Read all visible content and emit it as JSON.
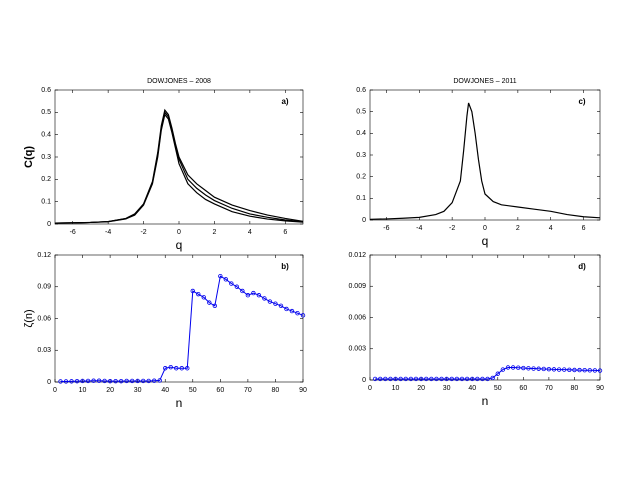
{
  "chart_data": [
    {
      "type": "line",
      "title": "DOWJONES – 2008",
      "annotation": "a)",
      "x_label": "q",
      "y_label": "C(q)",
      "x": [
        -7,
        -6,
        -5,
        -4,
        -3,
        -2.5,
        -2,
        -1.5,
        -1.2,
        -1,
        -0.8,
        -0.6,
        -0.4,
        -0.2,
        0,
        0.5,
        1,
        1.5,
        2,
        3,
        4,
        5,
        6,
        7
      ],
      "series": [
        {
          "color": "#000000",
          "values": [
            0.004,
            0.005,
            0.007,
            0.011,
            0.025,
            0.045,
            0.09,
            0.19,
            0.32,
            0.44,
            0.51,
            0.49,
            0.43,
            0.36,
            0.3,
            0.22,
            0.18,
            0.15,
            0.12,
            0.085,
            0.06,
            0.04,
            0.025,
            0.012
          ]
        },
        {
          "color": "#000000",
          "values": [
            0.004,
            0.005,
            0.007,
            0.011,
            0.024,
            0.043,
            0.088,
            0.185,
            0.31,
            0.43,
            0.5,
            0.48,
            0.42,
            0.35,
            0.29,
            0.2,
            0.16,
            0.13,
            0.105,
            0.07,
            0.045,
            0.03,
            0.018,
            0.01
          ]
        },
        {
          "color": "#000000",
          "values": [
            0.004,
            0.005,
            0.007,
            0.01,
            0.023,
            0.04,
            0.085,
            0.18,
            0.3,
            0.42,
            0.49,
            0.47,
            0.41,
            0.34,
            0.27,
            0.18,
            0.14,
            0.11,
            0.09,
            0.055,
            0.035,
            0.022,
            0.014,
            0.008
          ]
        }
      ],
      "xlim": [
        -7,
        7
      ],
      "xticks": [
        -6,
        -4,
        -2,
        0,
        2,
        4,
        6
      ],
      "ylim": [
        0,
        0.6
      ],
      "yticks": [
        0,
        0.1,
        0.2,
        0.3,
        0.4,
        0.5,
        0.6
      ]
    },
    {
      "type": "line",
      "title": "DOWJONES – 2011",
      "annotation": "c)",
      "x_label": "q",
      "x": [
        -7,
        -6,
        -5,
        -4,
        -3,
        -2.5,
        -2,
        -1.5,
        -1.3,
        -1.1,
        -1,
        -0.8,
        -0.6,
        -0.4,
        -0.2,
        0,
        0.5,
        1,
        2,
        3,
        4,
        5,
        6,
        7
      ],
      "series": [
        {
          "color": "#000000",
          "values": [
            0.003,
            0.005,
            0.008,
            0.012,
            0.025,
            0.04,
            0.08,
            0.18,
            0.32,
            0.48,
            0.54,
            0.5,
            0.4,
            0.28,
            0.18,
            0.12,
            0.085,
            0.07,
            0.06,
            0.05,
            0.04,
            0.025,
            0.015,
            0.01
          ]
        }
      ],
      "xlim": [
        -7,
        7
      ],
      "xticks": [
        -6,
        -4,
        -2,
        0,
        2,
        4,
        6
      ],
      "ylim": [
        0,
        0.6
      ],
      "yticks": [
        0,
        0.1,
        0.2,
        0.3,
        0.4,
        0.5,
        0.6
      ]
    },
    {
      "type": "line",
      "annotation": "b)",
      "x_label": "n",
      "y_label": "ζ(n)",
      "marker": true,
      "x": [
        2,
        4,
        6,
        8,
        10,
        12,
        14,
        16,
        18,
        20,
        22,
        24,
        26,
        28,
        30,
        32,
        34,
        36,
        38,
        40,
        42,
        44,
        46,
        48,
        50,
        52,
        54,
        56,
        58,
        60,
        62,
        64,
        66,
        68,
        70,
        72,
        74,
        76,
        78,
        80,
        82,
        84,
        86,
        88,
        90
      ],
      "series": [
        {
          "color": "#0000ee",
          "values": [
            0.0005,
            0.0005,
            0.0006,
            0.0008,
            0.001,
            0.001,
            0.0012,
            0.0012,
            0.001,
            0.0008,
            0.0008,
            0.0008,
            0.001,
            0.001,
            0.001,
            0.001,
            0.001,
            0.0012,
            0.0015,
            0.013,
            0.014,
            0.013,
            0.013,
            0.013,
            0.086,
            0.083,
            0.08,
            0.075,
            0.072,
            0.1,
            0.097,
            0.093,
            0.09,
            0.086,
            0.082,
            0.084,
            0.082,
            0.079,
            0.076,
            0.074,
            0.072,
            0.069,
            0.067,
            0.065,
            0.063
          ]
        }
      ],
      "xlim": [
        0,
        90
      ],
      "xticks": [
        0,
        10,
        20,
        30,
        40,
        50,
        60,
        70,
        80,
        90
      ],
      "ylim": [
        0,
        0.12
      ],
      "yticks": [
        0,
        0.03,
        0.06,
        0.09,
        0.12
      ]
    },
    {
      "type": "line",
      "annotation": "d)",
      "x_label": "n",
      "marker": true,
      "x": [
        2,
        4,
        6,
        8,
        10,
        12,
        14,
        16,
        18,
        20,
        22,
        24,
        26,
        28,
        30,
        32,
        34,
        36,
        38,
        40,
        42,
        44,
        46,
        48,
        50,
        52,
        54,
        56,
        58,
        60,
        62,
        64,
        66,
        68,
        70,
        72,
        74,
        76,
        78,
        80,
        82,
        84,
        86,
        88,
        90
      ],
      "series": [
        {
          "color": "#0000ee",
          "values": [
            0.0001,
            0.0001,
            0.0001,
            0.0001,
            0.0001,
            0.0001,
            0.0001,
            0.0001,
            0.0001,
            0.0001,
            0.0001,
            0.0001,
            0.0001,
            0.0001,
            0.0001,
            0.0001,
            0.0001,
            0.0001,
            0.0001,
            0.0001,
            0.0001,
            0.0001,
            0.0001,
            0.0002,
            0.0006,
            0.001,
            0.0012,
            0.0012,
            0.00118,
            0.00115,
            0.00112,
            0.0011,
            0.00108,
            0.00106,
            0.00104,
            0.00102,
            0.001,
            0.001,
            0.00098,
            0.00096,
            0.00095,
            0.00094,
            0.00093,
            0.00092,
            0.0009
          ]
        }
      ],
      "xlim": [
        0,
        90
      ],
      "xticks": [
        0,
        10,
        20,
        30,
        40,
        50,
        60,
        70,
        80,
        90
      ],
      "ylim": [
        0,
        0.012
      ],
      "yticks": [
        0,
        0.003,
        0.006,
        0.009,
        0.012
      ]
    }
  ]
}
